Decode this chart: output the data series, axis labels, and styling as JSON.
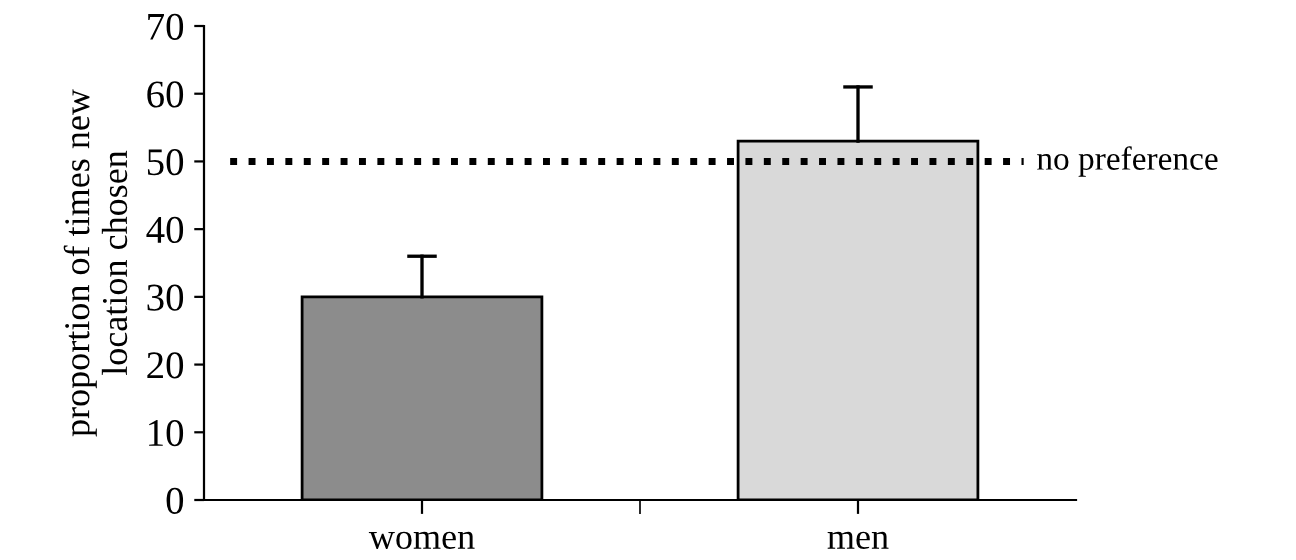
{
  "chart_data": {
    "type": "bar",
    "ylabel": "proportion of times new\nlocation chosen",
    "categories": [
      "women",
      "men"
    ],
    "series": [
      {
        "colors": [
          "#8c8c8c",
          "#d9d9d9"
        ],
        "values": [
          30,
          53
        ],
        "errors": [
          [
            30,
            36
          ],
          [
            53,
            61
          ]
        ]
      }
    ],
    "ylim": [
      0,
      70
    ],
    "yticks": [
      0,
      10,
      20,
      30,
      40,
      50,
      60,
      70
    ],
    "grid": false,
    "legend": false,
    "ref_lines": [
      {
        "axis": "y",
        "value": 50,
        "label": "no preference",
        "line_style": "dotted",
        "color": "#000000"
      }
    ]
  }
}
